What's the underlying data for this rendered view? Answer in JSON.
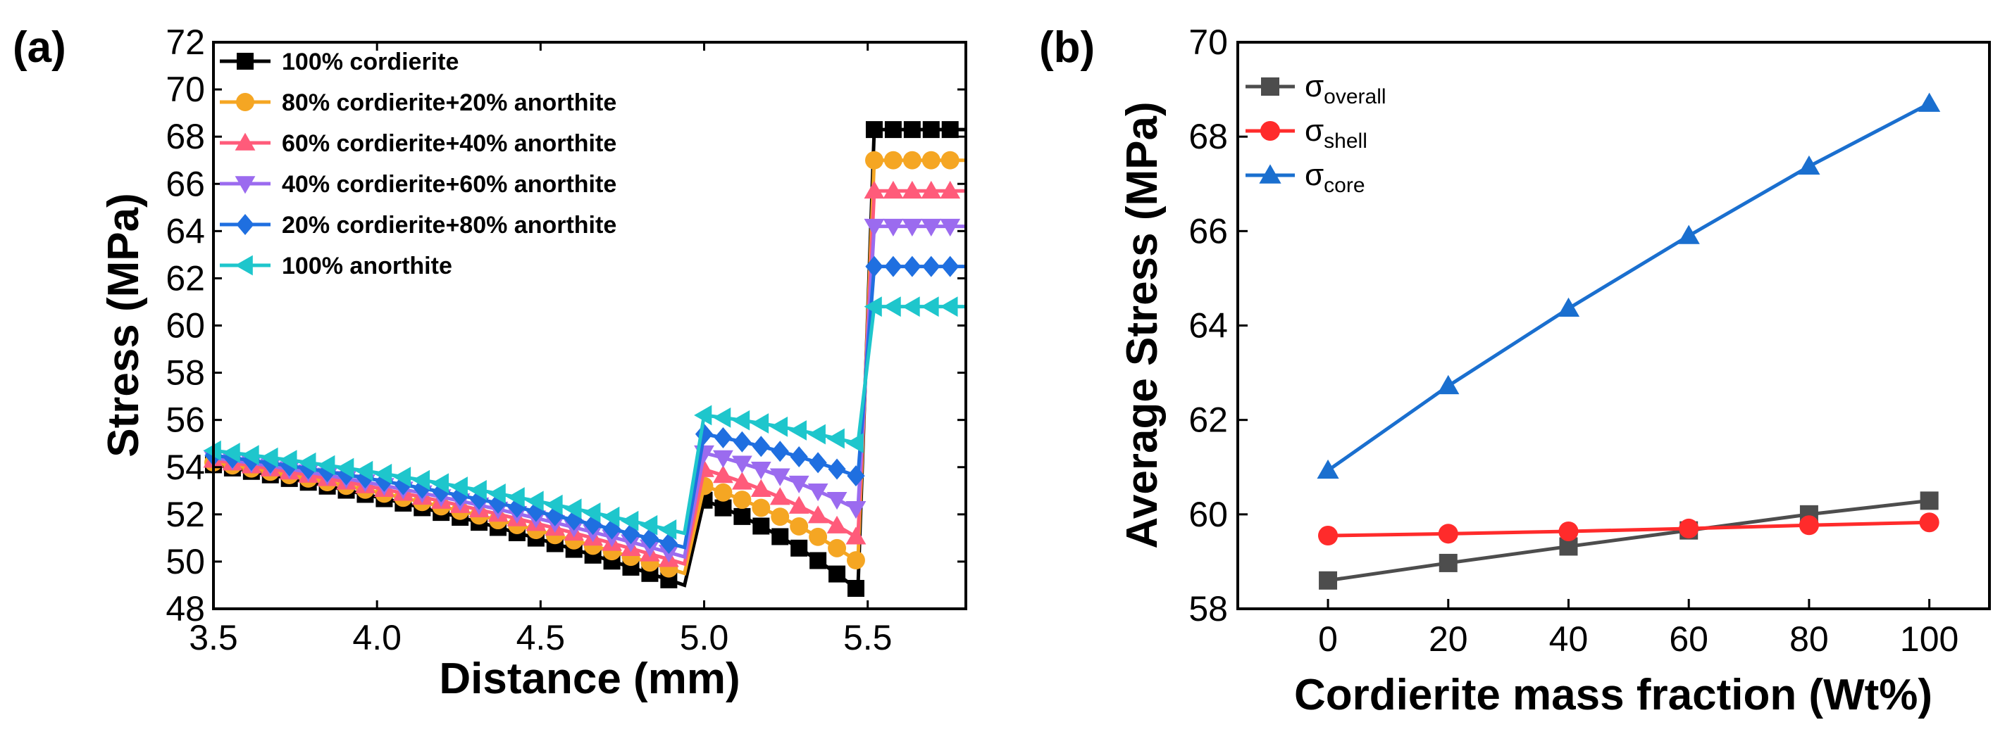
{
  "chart_data": [
    {
      "panel": "(a)",
      "type": "line",
      "title": "",
      "xlabel": "Distance (mm)",
      "ylabel": "Stress (MPa)",
      "xlim": [
        3.5,
        5.8
      ],
      "ylim": [
        48,
        72
      ],
      "xticks": [
        "3.5",
        "4.0",
        "4.5",
        "5.0",
        "5.5"
      ],
      "yticks": [
        "48",
        "50",
        "52",
        "54",
        "56",
        "58",
        "60",
        "62",
        "64",
        "66",
        "68",
        "70",
        "72"
      ],
      "legend_position": "top-left",
      "series": [
        {
          "name": "100% cordierite",
          "color": "#000000",
          "marker": "square",
          "segments": [
            {
              "x0": 3.5,
              "x1": 4.94,
              "y0": 54.1,
              "y1": 49.0,
              "curve": "concave-down"
            },
            {
              "x0": 5.0,
              "x1": 5.47,
              "y0": 52.6,
              "y1": 48.8,
              "curve": "concave-down"
            },
            {
              "x0": 5.52,
              "x1": 5.8,
              "y0": 68.3,
              "y1": 68.3,
              "curve": "flat"
            }
          ]
        },
        {
          "name": "80% cordierite+20% anorthite",
          "color": "#f5a623",
          "marker": "circle",
          "segments": [
            {
              "x0": 3.5,
              "x1": 4.94,
              "y0": 54.2,
              "y1": 49.5,
              "curve": "concave-down"
            },
            {
              "x0": 5.0,
              "x1": 5.47,
              "y0": 53.2,
              "y1": 50.0,
              "curve": "concave-down"
            },
            {
              "x0": 5.52,
              "x1": 5.8,
              "y0": 67.0,
              "y1": 67.0,
              "curve": "flat"
            }
          ]
        },
        {
          "name": "60% cordierite+40% anorthite",
          "color": "#ff5b7a",
          "marker": "triangle-up",
          "segments": [
            {
              "x0": 3.5,
              "x1": 4.94,
              "y0": 54.3,
              "y1": 49.9,
              "curve": "concave-down"
            },
            {
              "x0": 5.0,
              "x1": 5.47,
              "y0": 53.9,
              "y1": 51.0,
              "curve": "concave-down"
            },
            {
              "x0": 5.52,
              "x1": 5.8,
              "y0": 65.7,
              "y1": 65.7,
              "curve": "flat"
            }
          ]
        },
        {
          "name": "40% cordierite+60% anorthite",
          "color": "#9b6bef",
          "marker": "triangle-down",
          "segments": [
            {
              "x0": 3.5,
              "x1": 4.94,
              "y0": 54.4,
              "y1": 50.2,
              "curve": "concave-down"
            },
            {
              "x0": 5.0,
              "x1": 5.47,
              "y0": 54.6,
              "y1": 52.2,
              "curve": "concave-down"
            },
            {
              "x0": 5.52,
              "x1": 5.8,
              "y0": 64.2,
              "y1": 64.2,
              "curve": "flat"
            }
          ]
        },
        {
          "name": "20% cordierite+80% anorthite",
          "color": "#1f6fe0",
          "marker": "diamond",
          "segments": [
            {
              "x0": 3.5,
              "x1": 4.94,
              "y0": 54.5,
              "y1": 50.6,
              "curve": "concave-down"
            },
            {
              "x0": 5.0,
              "x1": 5.47,
              "y0": 55.4,
              "y1": 53.6,
              "curve": "concave-down"
            },
            {
              "x0": 5.52,
              "x1": 5.8,
              "y0": 62.5,
              "y1": 62.5,
              "curve": "flat"
            }
          ]
        },
        {
          "name": "100% anorthite",
          "color": "#1ec6cc",
          "marker": "triangle-left",
          "segments": [
            {
              "x0": 3.5,
              "x1": 4.94,
              "y0": 54.7,
              "y1": 51.2,
              "curve": "concave-down"
            },
            {
              "x0": 5.0,
              "x1": 5.47,
              "y0": 56.2,
              "y1": 55.0,
              "curve": "concave-down"
            },
            {
              "x0": 5.52,
              "x1": 5.8,
              "y0": 60.8,
              "y1": 60.8,
              "curve": "flat"
            }
          ]
        }
      ]
    },
    {
      "panel": "(b)",
      "type": "line",
      "title": "",
      "xlabel": "Cordierite mass fraction (Wt%)",
      "ylabel": "Average Stress (MPa)",
      "xlim": [
        -15,
        110
      ],
      "ylim": [
        58,
        70
      ],
      "xticks": [
        "0",
        "20",
        "40",
        "60",
        "80",
        "100"
      ],
      "yticks": [
        "58",
        "60",
        "62",
        "64",
        "66",
        "68",
        "70"
      ],
      "legend_position": "top-left",
      "x": [
        0,
        20,
        40,
        60,
        80,
        100
      ],
      "series": [
        {
          "name": "σ",
          "subscript": "overall",
          "color": "#4d4d4d",
          "marker": "square",
          "values": [
            58.6,
            58.97,
            59.32,
            59.66,
            60.0,
            60.29
          ]
        },
        {
          "name": "σ",
          "subscript": "shell",
          "color": "#ff2b2b",
          "marker": "circle",
          "values": [
            59.55,
            59.59,
            59.64,
            59.7,
            59.77,
            59.83
          ]
        },
        {
          "name": "σ",
          "subscript": "core",
          "color": "#1a6fcf",
          "marker": "triangle-up",
          "values": [
            60.93,
            62.72,
            64.36,
            65.9,
            67.37,
            68.7
          ]
        }
      ]
    }
  ]
}
